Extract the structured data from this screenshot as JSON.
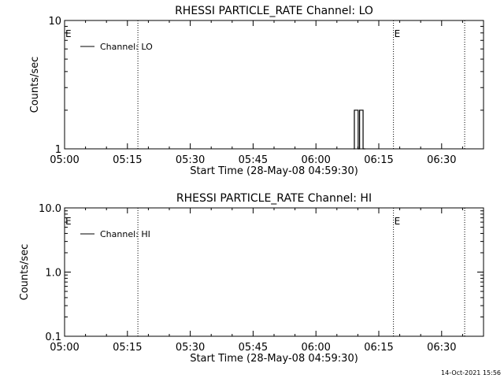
{
  "chart_data": [
    {
      "type": "line",
      "title": "RHESSI PARTICLE_RATE Channel: LO",
      "xlabel": "Start Time (28-May-08 04:59:30)",
      "ylabel": "Counts/sec",
      "y_scale": "log",
      "ylim": [
        1,
        10
      ],
      "y_ticks": [
        "1",
        "10"
      ],
      "xlim": [
        "05:00",
        "06:40"
      ],
      "x_ticks": [
        "05:00",
        "05:15",
        "05:30",
        "05:45",
        "06:00",
        "06:15",
        "06:30"
      ],
      "legend_position": "top-left",
      "grid": false,
      "series": [
        {
          "name": "Channel: LO",
          "x": [
            "06:09:00",
            "06:09:10",
            "06:09:10",
            "06:10:05",
            "06:10:05",
            "06:10:25",
            "06:10:25",
            "06:11:15",
            "06:11:15",
            "06:11:45"
          ],
          "y": [
            1,
            1,
            2,
            2,
            1,
            1,
            2,
            2,
            1,
            1
          ]
        }
      ],
      "markers": [
        {
          "time": "05:17:30",
          "style": "dotted",
          "label": ""
        },
        {
          "time": "06:18:30",
          "style": "dotted",
          "label": "E"
        },
        {
          "time": "06:35:30",
          "style": "dotted",
          "label": ""
        }
      ],
      "left_edge_label": "E"
    },
    {
      "type": "line",
      "title": "RHESSI PARTICLE_RATE Channel: HI",
      "xlabel": "Start Time (28-May-08 04:59:30)",
      "ylabel": "Counts/sec",
      "y_scale": "log",
      "ylim": [
        0.1,
        10
      ],
      "y_ticks": [
        "0.1",
        "1.0",
        "10.0"
      ],
      "xlim": [
        "05:00",
        "06:40"
      ],
      "x_ticks": [
        "05:00",
        "05:15",
        "05:30",
        "05:45",
        "06:00",
        "06:15",
        "06:30"
      ],
      "legend_position": "top-left",
      "grid": false,
      "series": [
        {
          "name": "Channel: HI",
          "x": [],
          "y": []
        }
      ],
      "markers": [
        {
          "time": "05:17:30",
          "style": "dotted",
          "label": ""
        },
        {
          "time": "06:18:30",
          "style": "dotted",
          "label": "E"
        },
        {
          "time": "06:35:30",
          "style": "dotted",
          "label": ""
        }
      ],
      "left_edge_label": "E"
    }
  ],
  "footer": {
    "timestamp": "14-Oct-2021 15:56"
  }
}
